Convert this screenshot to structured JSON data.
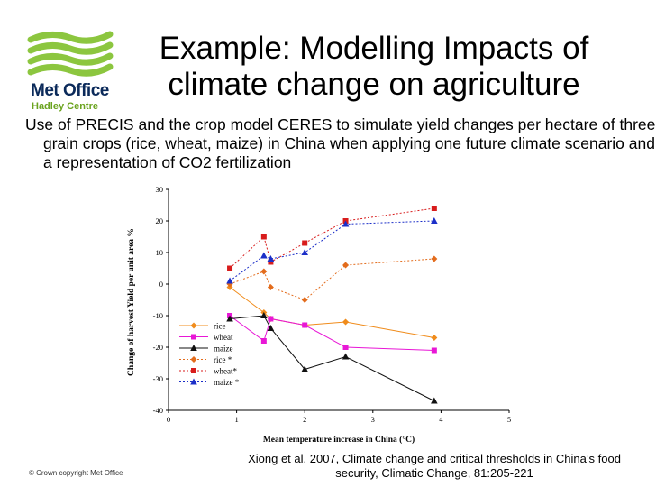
{
  "logo": {
    "name": "Met Office",
    "subtitle": "Hadley Centre"
  },
  "title": "Example: Modelling Impacts of climate change on agriculture",
  "intro": "Use of PRECIS and the crop model CERES to simulate yield changes per hectare of three grain crops (rice, wheat, maize) in China when applying one future climate scenario and a representation of CO2 fertilization",
  "citation": "Xiong et al, 2007, Climate change and critical thresholds in China’s food security, Climatic Change, 81:205-221",
  "copyright": "© Crown copyright Met Office",
  "chart_data": {
    "type": "line",
    "xlabel": "Mean temperature increase in China (°C)",
    "ylabel": "Change of harvest Yield per unit area %",
    "xlim": [
      0,
      5
    ],
    "ylim": [
      -40,
      30
    ],
    "xticks": [
      0,
      1,
      2,
      3,
      4,
      5
    ],
    "yticks": [
      30,
      20,
      10,
      0,
      -10,
      -20,
      -30,
      -40
    ],
    "grid": false,
    "legend_position": "bottom-left",
    "series": [
      {
        "name": "rice",
        "color": "#f08c1c",
        "dashed": false,
        "marker": "diamond",
        "x": [
          0.9,
          1.4,
          1.5,
          2.0,
          2.6,
          3.9
        ],
        "y": [
          -1,
          -9,
          -11,
          -13,
          -12,
          -17
        ]
      },
      {
        "name": "wheat",
        "color": "#e817d6",
        "dashed": false,
        "marker": "square",
        "x": [
          0.9,
          1.4,
          1.5,
          2.0,
          2.6,
          3.9
        ],
        "y": [
          -10,
          -18,
          -11,
          -13,
          -20,
          -21
        ]
      },
      {
        "name": "maize",
        "color": "#111111",
        "dashed": false,
        "marker": "triangle",
        "x": [
          0.9,
          1.4,
          1.5,
          2.0,
          2.6,
          3.9
        ],
        "y": [
          -11,
          -10,
          -14,
          -27,
          -23,
          -37
        ]
      },
      {
        "name": "rice *",
        "color": "#e36c1c",
        "dashed": true,
        "marker": "diamond",
        "x": [
          0.9,
          1.4,
          1.5,
          2.0,
          2.6,
          3.9
        ],
        "y": [
          0,
          4,
          -1,
          -5,
          6,
          8
        ]
      },
      {
        "name": "wheat*",
        "color": "#d81c1c",
        "dashed": true,
        "marker": "square",
        "x": [
          0.9,
          1.4,
          1.5,
          2.0,
          2.6,
          3.9
        ],
        "y": [
          5,
          15,
          7,
          13,
          20,
          24
        ]
      },
      {
        "name": "maize *",
        "color": "#1c2fc8",
        "dashed": true,
        "marker": "triangle",
        "x": [
          0.9,
          1.4,
          1.5,
          2.0,
          2.6,
          3.9
        ],
        "y": [
          1,
          9,
          8,
          10,
          19,
          20
        ]
      }
    ]
  }
}
